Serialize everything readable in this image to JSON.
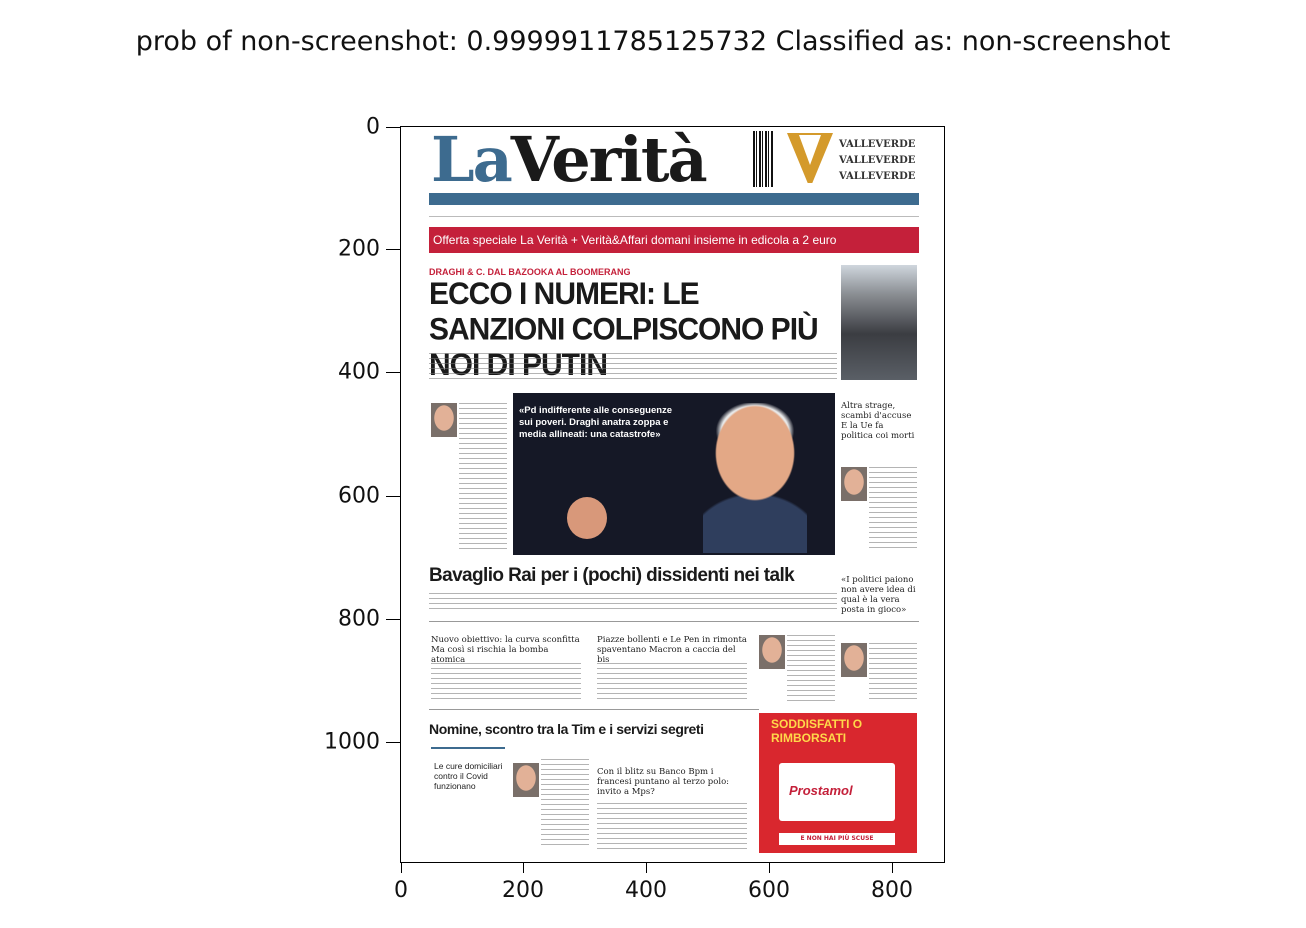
{
  "figure": {
    "title": "prob of non-screenshot: 0.9999911785125732 Classified as: non-screenshot",
    "y_ticks": [
      "0",
      "200",
      "400",
      "600",
      "800",
      "1000"
    ],
    "x_ticks": [
      "0",
      "200",
      "400",
      "600",
      "800"
    ]
  },
  "newspaper": {
    "masthead_la": "La",
    "masthead_verita": "Verità",
    "brand_lines": [
      "VALLEVERDE",
      "VALLEVERDE",
      "VALLEVERDE"
    ],
    "promo": "Offerta speciale La Verità + Verità&Affari domani insieme in edicola a 2 euro",
    "kicker_main": "DRAGHI & C. DAL BAZOOKA AL BOOMERANG",
    "headline_main": "ECCO I NUMERI: LE SANZIONI COLPISCONO PIÙ NOI DI PUTIN",
    "photo_caption": "«Pd indifferente alle conseguenze sui poveri. Draghi anatra zoppa e media allineati: una catastrofe»",
    "right_col_head": "Altra strage, scambi d'accuse E la Ue fa politica coi morti",
    "right_col_quote": "«I politici paiono non avere idea di qual è la vera posta in gioco»",
    "headline_rai": "Bavaglio Rai per i (pochi) dissidenti nei talk",
    "box_left_head": "Nuovo obiettivo: la curva sconfitta Ma così si rischia la bomba atomica",
    "box_mid_head": "Piazze bollenti e Le Pen in rimonta spaventano Macron a caccia del bis",
    "headline_tim": "Nomine, scontro tra la Tim e i servizi segreti",
    "sidebox_text": "Le cure domiciliari contro il Covid funzionano",
    "box_bank_head": "Con il blitz su Banco Bpm i francesi puntano al terzo polo: invito a Mps?",
    "ad_title": "SODDISFATTI O RIMBORSATI",
    "ad_brand": "Prostamol",
    "ad_foot": "E NON HAI PIÙ SCUSE"
  }
}
